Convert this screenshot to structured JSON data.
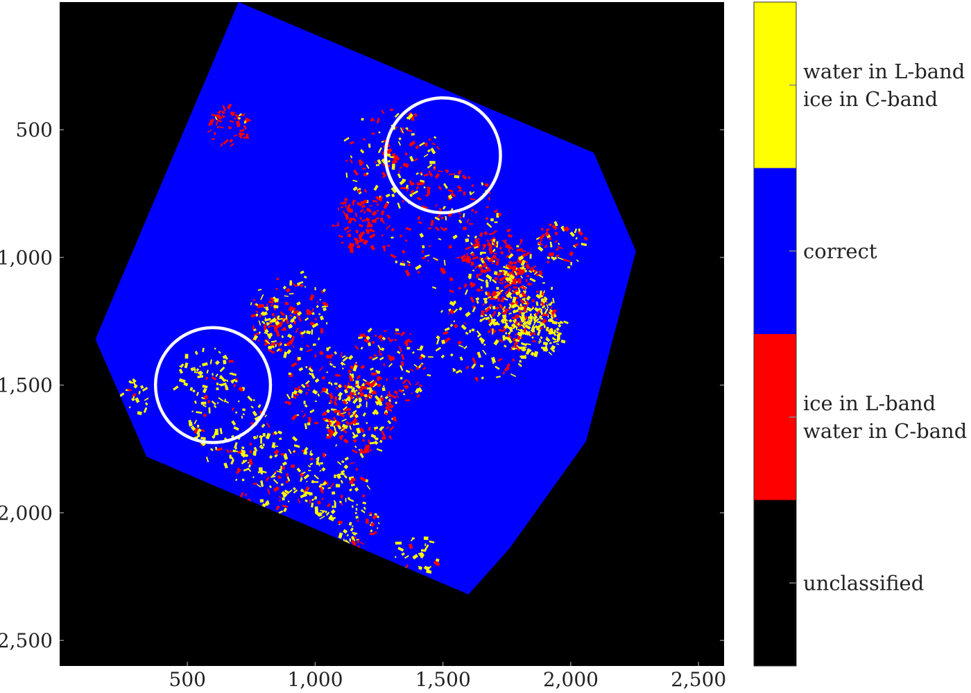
{
  "chart_data": {
    "type": "heatmap",
    "xlim": [
      0,
      2600
    ],
    "ylim": [
      0,
      2600
    ],
    "y_inverted": true,
    "x_ticks": [
      500,
      1000,
      1500,
      2000,
      2500
    ],
    "x_tick_labels": [
      "500",
      "1,000",
      "1,500",
      "2,000",
      "2,500"
    ],
    "y_ticks": [
      500,
      1000,
      1500,
      2000,
      2500
    ],
    "y_tick_labels": [
      "500",
      "1,000",
      "1,500",
      "2,000",
      "2,500"
    ],
    "footprint": [
      [
        700,
        0
      ],
      [
        2090,
        590
      ],
      [
        2255,
        975
      ],
      [
        2060,
        1720
      ],
      [
        1760,
        2140
      ],
      [
        1600,
        2320
      ],
      [
        340,
        1780
      ],
      [
        140,
        1320
      ]
    ],
    "highlight_circles": [
      {
        "cx": 1500,
        "cy": 600,
        "r": 225
      },
      {
        "cx": 600,
        "cy": 1500,
        "r": 225
      }
    ],
    "colorbar": [
      {
        "name": "water in L-band\nice in C-band",
        "color": "#ffff00",
        "lines": [
          "water in L-band",
          "ice in C-band"
        ]
      },
      {
        "name": "correct",
        "color": "#0000ff",
        "lines": [
          "correct"
        ]
      },
      {
        "name": "ice in L-band\nwater in C-band",
        "color": "#ff0000",
        "lines": [
          "ice in L-band",
          "water in C-band"
        ]
      },
      {
        "name": "unclassified",
        "color": "#000000",
        "lines": [
          "unclassified"
        ]
      }
    ],
    "colors": {
      "background": "#000000",
      "correct": "#0000ff",
      "water_L_ice_C": "#ffff00",
      "ice_L_water_C": "#ff0000",
      "circle": "#ffffff"
    },
    "title": "",
    "xlabel": "",
    "ylabel": ""
  }
}
